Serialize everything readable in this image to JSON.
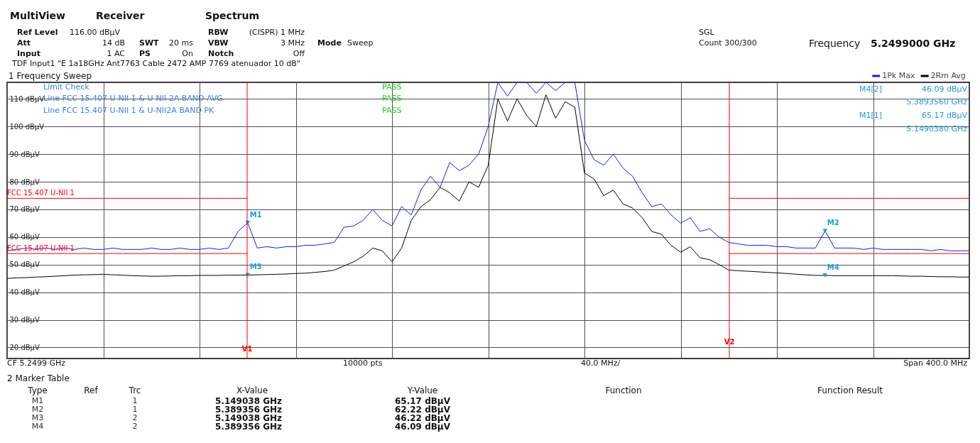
{
  "chart_data": {
    "type": "line",
    "categories": [
      null,
      null,
      null,
      null,
      null,
      null,
      null,
      null,
      null,
      null,
      null,
      null,
      null,
      null,
      null,
      null,
      null,
      null,
      null,
      null,
      null,
      null,
      null,
      null,
      null,
      null,
      null,
      null,
      null,
      null,
      null,
      null,
      null,
      null,
      null,
      null,
      null,
      null,
      null,
      null,
      null,
      null,
      null,
      null,
      null,
      null,
      null,
      null,
      null,
      null,
      null,
      null,
      null,
      null,
      null,
      null,
      null,
      null,
      null,
      null,
      null,
      null,
      null,
      null,
      null,
      null,
      null,
      null,
      null,
      null,
      null,
      null,
      null,
      null,
      null,
      null,
      null,
      null,
      null,
      null,
      null,
      null,
      null,
      null,
      null,
      null,
      null,
      null,
      null,
      null,
      null,
      null,
      null,
      null,
      null,
      null,
      null,
      null,
      null,
      null,
      null
    ],
    "ylim": [
      16,
      116
    ],
    "yticks": [
      {
        "value": 20,
        "label": "20 dBµV"
      },
      {
        "value": 30,
        "label": "30 dBµV"
      },
      {
        "value": 40,
        "label": "40 dBµV"
      },
      {
        "value": 50,
        "label": "50 dBµV"
      },
      {
        "value": 60,
        "label": "60 dBµV"
      },
      {
        "value": 70,
        "label": "70 dBµV"
      },
      {
        "value": 80,
        "label": "80 dBµV"
      },
      {
        "value": 90,
        "label": "90 dBµV"
      },
      {
        "value": 100,
        "label": "100 dBµV"
      },
      {
        "value": 110,
        "label": "110 dBµV"
      }
    ],
    "tick_labels": "y",
    "grid": true,
    "legend": "top right",
    "series": [
      {
        "name": "1Pk Max",
        "color": "#1a1aff",
        "values": [
          55,
          55.5,
          56,
          55.5,
          56,
          55.5,
          56,
          55.5,
          56,
          55.5,
          55.5,
          56,
          55.5,
          55.5,
          55.5,
          56,
          55.5,
          55.5,
          56,
          55.5,
          55.5,
          56,
          55.5,
          56,
          62,
          65.17,
          56,
          56.5,
          56,
          56.5,
          56.5,
          57,
          57,
          57.5,
          58,
          63.5,
          64,
          66,
          70,
          66,
          64,
          71,
          68,
          77,
          82,
          78,
          87,
          84,
          86,
          90,
          100,
          116,
          111,
          116,
          116,
          112,
          116,
          113,
          116,
          116,
          95,
          88,
          86,
          90,
          85,
          82,
          76,
          71,
          72,
          68,
          65,
          67,
          62,
          63,
          60,
          58,
          57.5,
          57,
          57,
          57,
          56.5,
          56.5,
          56,
          56,
          56,
          62.22,
          56,
          56,
          56,
          55.5,
          56,
          55.5,
          55.5,
          55.5,
          55.5,
          55.5,
          55,
          55.5,
          55,
          55,
          55
        ]
      },
      {
        "name": "2Rm Avg",
        "color": "#000000",
        "values": [
          45,
          45.2,
          45.3,
          45.5,
          45.6,
          45.8,
          46,
          46.2,
          46.3,
          46.4,
          46.5,
          46.3,
          46.2,
          46,
          45.9,
          45.8,
          45.8,
          45.9,
          46,
          46,
          46.1,
          46.1,
          46.1,
          46.2,
          46.2,
          46.22,
          46.3,
          46.4,
          46.5,
          46.6,
          46.8,
          46.9,
          47.2,
          47.5,
          48,
          49.5,
          51,
          53,
          56,
          55,
          51,
          56,
          66,
          71,
          73.5,
          78,
          76,
          73,
          80,
          78,
          86,
          110,
          102,
          110,
          104,
          100,
          111.5,
          103,
          109,
          107,
          83.2,
          81,
          75,
          77,
          72,
          70.5,
          67,
          62,
          61,
          57,
          54.5,
          56.5,
          52.5,
          51.8,
          50,
          48,
          47.8,
          47.6,
          47.4,
          47.2,
          47,
          46.8,
          46.5,
          46.3,
          46.1,
          46.09,
          46,
          46,
          46,
          46,
          46,
          46,
          46,
          45.9,
          45.8,
          45.8,
          45.7,
          45.6,
          45.6,
          45.5,
          45.5
        ]
      },
      {
        "name": "FCC 15.407 U-NII 1",
        "type": "step",
        "color": "#ff0000",
        "values": [
          74,
          74,
          74,
          74,
          74,
          74,
          74,
          74,
          74,
          74,
          74,
          74,
          74,
          74,
          74,
          74,
          74,
          74,
          74,
          74,
          74,
          74,
          74,
          74,
          74,
          74,
          null,
          null,
          null,
          null,
          null,
          null,
          null,
          null,
          null,
          null,
          null,
          null,
          null,
          null,
          null,
          null,
          null,
          null,
          null,
          null,
          null,
          null,
          null,
          null,
          null,
          null,
          null,
          null,
          null,
          null,
          null,
          null,
          null,
          null,
          null,
          null,
          null,
          null,
          null,
          null,
          null,
          null,
          null,
          null,
          null,
          null,
          null,
          null,
          null,
          74,
          74,
          74,
          74,
          74,
          74,
          74,
          74,
          74,
          74,
          74,
          74,
          74,
          74,
          74,
          74,
          74,
          74,
          74,
          74,
          74,
          74,
          74,
          74,
          74,
          74
        ]
      },
      {
        "name": "FCC 15.407 U-NII 1",
        "type": "step",
        "color": "#ff0000",
        "values": [
          54,
          54,
          54,
          54,
          54,
          54,
          54,
          54,
          54,
          54,
          54,
          54,
          54,
          54,
          54,
          54,
          54,
          54,
          54,
          54,
          54,
          54,
          54,
          54,
          54,
          54,
          null,
          null,
          null,
          null,
          null,
          null,
          null,
          null,
          null,
          null,
          null,
          null,
          null,
          null,
          null,
          null,
          null,
          null,
          null,
          null,
          null,
          null,
          null,
          null,
          null,
          null,
          null,
          null,
          null,
          null,
          null,
          null,
          null,
          null,
          null,
          null,
          null,
          null,
          null,
          null,
          null,
          null,
          null,
          null,
          null,
          null,
          null,
          null,
          null,
          54,
          54,
          54,
          54,
          54,
          54,
          54,
          54,
          54,
          54,
          54,
          54,
          54,
          54,
          54,
          54,
          54,
          54,
          54,
          54,
          54,
          54,
          54,
          54,
          54,
          54
        ]
      },
      {
        "type": "scatter",
        "marker": "triangle",
        "color": "#1e9be0",
        "values": [
          null,
          null,
          null,
          null,
          null,
          null,
          null,
          null,
          null,
          null,
          null,
          null,
          null,
          null,
          null,
          null,
          null,
          null,
          null,
          null,
          null,
          null,
          null,
          null,
          null,
          65.17,
          null,
          null,
          null,
          null,
          null,
          null,
          null,
          null,
          null,
          null,
          null,
          null,
          null,
          null,
          null,
          null,
          null,
          null,
          null,
          null,
          null,
          null,
          null,
          null,
          null,
          null,
          null,
          null,
          null,
          null,
          null,
          null,
          null,
          null,
          null,
          null,
          null,
          null,
          null,
          null,
          null,
          null,
          null,
          null,
          null,
          null,
          null,
          null,
          null,
          null,
          null,
          null,
          null,
          null,
          null,
          null,
          null,
          null,
          null,
          62.22,
          null,
          null,
          null,
          null,
          null,
          null,
          null,
          null,
          null,
          null,
          null,
          null,
          null,
          null,
          null
        ],
        "value_labels": [
          null,
          null,
          null,
          null,
          null,
          null,
          null,
          null,
          null,
          null,
          null,
          null,
          null,
          null,
          null,
          null,
          null,
          null,
          null,
          null,
          null,
          null,
          null,
          null,
          null,
          "M1",
          null,
          null,
          null,
          null,
          null,
          null,
          null,
          null,
          null,
          null,
          null,
          null,
          null,
          null,
          null,
          null,
          null,
          null,
          null,
          null,
          null,
          null,
          null,
          null,
          null,
          null,
          null,
          null,
          null,
          null,
          null,
          null,
          null,
          null,
          null,
          null,
          null,
          null,
          null,
          null,
          null,
          null,
          null,
          null,
          null,
          null,
          null,
          null,
          null,
          null,
          null,
          null,
          null,
          null,
          null,
          null,
          null,
          null,
          null,
          "M2",
          null,
          null,
          null,
          null,
          null,
          null,
          null,
          null,
          null,
          null,
          null,
          null,
          null,
          null,
          null
        ]
      },
      {
        "type": "scatter",
        "marker": "triangle",
        "color": "#1e9be0",
        "values": [
          null,
          null,
          null,
          null,
          null,
          null,
          null,
          null,
          null,
          null,
          null,
          null,
          null,
          null,
          null,
          null,
          null,
          null,
          null,
          null,
          null,
          null,
          null,
          null,
          null,
          46.22,
          null,
          null,
          null,
          null,
          null,
          null,
          null,
          null,
          null,
          null,
          null,
          null,
          null,
          null,
          null,
          null,
          null,
          null,
          null,
          null,
          null,
          null,
          null,
          null,
          null,
          null,
          null,
          null,
          null,
          null,
          null,
          null,
          null,
          null,
          null,
          null,
          null,
          null,
          null,
          null,
          null,
          null,
          null,
          null,
          null,
          null,
          null,
          null,
          null,
          null,
          null,
          null,
          null,
          null,
          null,
          null,
          null,
          null,
          null,
          46.09,
          null,
          null,
          null,
          null,
          null,
          null,
          null,
          null,
          null,
          null,
          null,
          null,
          null,
          null,
          null
        ],
        "value_labels": [
          null,
          null,
          null,
          null,
          null,
          null,
          null,
          null,
          null,
          null,
          null,
          null,
          null,
          null,
          null,
          null,
          null,
          null,
          null,
          null,
          null,
          null,
          null,
          null,
          null,
          "M3",
          null,
          null,
          null,
          null,
          null,
          null,
          null,
          null,
          null,
          null,
          null,
          null,
          null,
          null,
          null,
          null,
          null,
          null,
          null,
          null,
          null,
          null,
          null,
          null,
          null,
          null,
          null,
          null,
          null,
          null,
          null,
          null,
          null,
          null,
          null,
          null,
          null,
          null,
          null,
          null,
          null,
          null,
          null,
          null,
          null,
          null,
          null,
          null,
          null,
          null,
          null,
          null,
          null,
          null,
          null,
          null,
          null,
          null,
          null,
          "M4",
          null,
          null,
          null,
          null,
          null,
          null,
          null,
          null,
          null,
          null,
          null,
          null,
          null,
          null,
          null
        ]
      }
    ],
    "annotations": [
      "MultiView",
      "Receiver",
      "Spectrum",
      "Ref Level",
      "116.00 dBµV",
      "Att",
      "14 dB",
      "Input",
      "1 AC",
      "SWT",
      "20 ms",
      "PS",
      "On",
      "RBW",
      "(CISPR) 1 MHz",
      "VBW",
      "3 MHz",
      "Notch",
      "Off",
      "Mode",
      "Sweep",
      "TDF Input1 \"E 1a18GHz Ant7763 Cable 2472 AMP 7769 atenuador 10 dB\"",
      "SGL",
      "Count 300/300",
      "Frequency",
      "5.2499000 GHz",
      "1 Frequency Sweep",
      "Limit Check",
      "Line FCC 15.407 U-NII 1 & U-NII 2A BAND AVG",
      "Line FCC 15.407 U-NII 1 & U-NII2A BAND PK",
      "PASS",
      "PASS",
      "PASS",
      "M4[2]",
      "46.09 dBµV",
      "5.3893560 GHz",
      "M1[1]",
      "65.17 dBµV",
      "5.1490380 GHz",
      "CF 5.2499 GHz",
      "10000 pts",
      "40.0 MHz/",
      "Span 400.0 MHz",
      "2 Marker Table",
      "Type",
      "Ref",
      "Trc",
      "X-Value",
      "Y-Value",
      "Function",
      "Function Result",
      "M1",
      "1",
      "5.149038 GHz",
      "65.17 dBµV",
      "M2",
      "1",
      "5.389356 GHz",
      "62.22 dBµV",
      "M3",
      "2",
      "5.149038 GHz",
      "46.22 dBµV",
      "M4",
      "2",
      "5.389356 GHz",
      "46.09 dBµV",
      "V1",
      "V2"
    ]
  }
}
